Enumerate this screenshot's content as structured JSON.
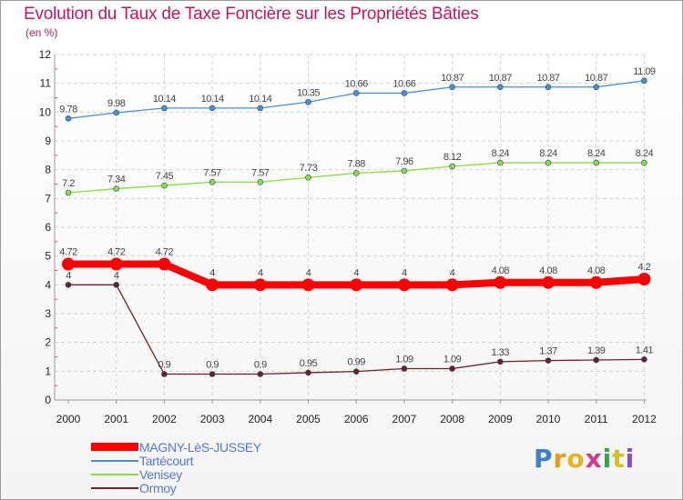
{
  "title": "Evolution du Taux de Taxe Foncière sur les Propriétés Bâties",
  "unit": "(en %)",
  "logo": "Proxiti",
  "chart_data": {
    "type": "line",
    "x": [
      "2000",
      "2001",
      "2002",
      "2003",
      "2004",
      "2005",
      "2006",
      "2007",
      "2008",
      "2009",
      "2010",
      "2011",
      "2012"
    ],
    "ylim": [
      0,
      12
    ],
    "yticks": [
      0,
      1,
      2,
      3,
      4,
      5,
      6,
      7,
      8,
      9,
      10,
      11,
      12
    ],
    "grid": true,
    "legend_position": "bottom-left",
    "series": [
      {
        "name": "MAGNY-LèS-JUSSEY",
        "color": "#ff0000",
        "values": [
          4.72,
          4.72,
          4.72,
          4,
          4,
          4,
          4,
          4,
          4,
          4.08,
          4.08,
          4.08,
          4.2
        ],
        "labels": [
          "4.72",
          "4.72",
          "4.72",
          "4",
          "4",
          "4",
          "4",
          "4",
          "4",
          "4.08",
          "4.08",
          "4.08",
          "4.2"
        ]
      },
      {
        "name": "Tartécourt",
        "color": "#4a8fd0",
        "values": [
          9.78,
          9.98,
          10.14,
          10.14,
          10.14,
          10.35,
          10.66,
          10.66,
          10.87,
          10.87,
          10.87,
          10.87,
          11.09
        ],
        "labels": [
          "9.78",
          "9.98",
          "10.14",
          "10.14",
          "10.14",
          "10.35",
          "10.66",
          "10.66",
          "10.87",
          "10.87",
          "10.87",
          "10.87",
          "11.09"
        ]
      },
      {
        "name": "Venisey",
        "color": "#88dd44",
        "values": [
          7.2,
          7.34,
          7.45,
          7.57,
          7.57,
          7.73,
          7.88,
          7.96,
          8.12,
          8.24,
          8.24,
          8.24,
          8.24
        ],
        "labels": [
          "7.2",
          "7.34",
          "7.45",
          "7.57",
          "7.57",
          "7.73",
          "7.88",
          "7.96",
          "8.12",
          "8.24",
          "8.24",
          "8.24",
          "8.24"
        ]
      },
      {
        "name": "Ormoy",
        "color": "#6b1f2a",
        "values": [
          4,
          4,
          0.9,
          0.9,
          0.9,
          0.95,
          0.99,
          1.09,
          1.09,
          1.33,
          1.37,
          1.39,
          1.41
        ],
        "labels": [
          "4",
          "4",
          "0.9",
          "0.9",
          "0.9",
          "0.95",
          "0.99",
          "1.09",
          "1.09",
          "1.33",
          "1.37",
          "1.39",
          "1.41"
        ]
      }
    ]
  }
}
